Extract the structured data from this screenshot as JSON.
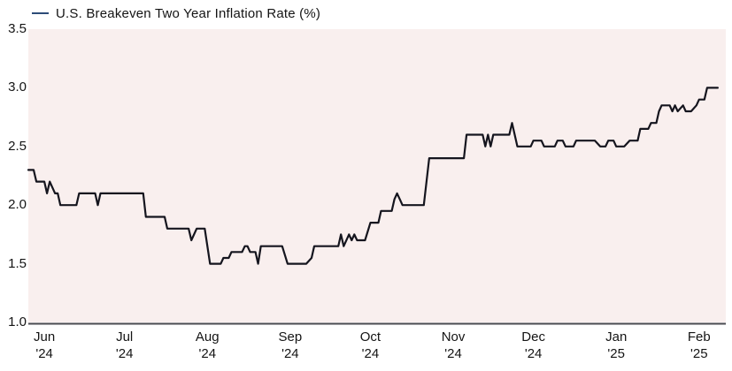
{
  "legend": {
    "label": "U.S. Breakeven Two Year Inflation Rate (%)"
  },
  "colors": {
    "line": "#15151e",
    "legend_dash": "#2c4b77",
    "plot_bg": "#f9efee",
    "axis_line": "#4a4a50",
    "text": "#141414"
  },
  "chart_data": {
    "type": "line",
    "title": "U.S. Breakeven Two Year Inflation Rate (%)",
    "xlabel": "",
    "ylabel": "",
    "grid": false,
    "legend_position": "top-left",
    "plot_background": "#f9efee",
    "x_axis": {
      "range": [
        "2024-05-26",
        "2025-02-11"
      ],
      "ticks": [
        {
          "date": "2024-06-01",
          "label": "Jun\n'24"
        },
        {
          "date": "2024-07-01",
          "label": "Jul\n'24"
        },
        {
          "date": "2024-08-01",
          "label": "Aug\n'24"
        },
        {
          "date": "2024-09-01",
          "label": "Sep\n'24"
        },
        {
          "date": "2024-10-01",
          "label": "Oct\n'24"
        },
        {
          "date": "2024-11-01",
          "label": "Nov\n'24"
        },
        {
          "date": "2024-12-01",
          "label": "Dec\n'24"
        },
        {
          "date": "2025-01-01",
          "label": "Jan\n'25"
        },
        {
          "date": "2025-02-01",
          "label": "Feb\n'25"
        }
      ]
    },
    "y_axis": {
      "range": [
        1.0,
        3.5
      ],
      "ticks": [
        {
          "value": 3.5,
          "label": "3.5"
        },
        {
          "value": 3.0,
          "label": "3.0"
        },
        {
          "value": 2.5,
          "label": "2.5"
        },
        {
          "value": 2.0,
          "label": "2.0"
        },
        {
          "value": 1.5,
          "label": "1.5"
        },
        {
          "value": 1.0,
          "label": "1.0"
        }
      ]
    },
    "series": [
      {
        "name": "U.S. Breakeven Two Year Inflation Rate (%)",
        "color": "#15151e",
        "points": [
          [
            "2024-05-26",
            2.3
          ],
          [
            "2024-05-28",
            2.3
          ],
          [
            "2024-05-29",
            2.2
          ],
          [
            "2024-06-01",
            2.2
          ],
          [
            "2024-06-02",
            2.1
          ],
          [
            "2024-06-03",
            2.2
          ],
          [
            "2024-06-05",
            2.1
          ],
          [
            "2024-06-06",
            2.1
          ],
          [
            "2024-06-07",
            2.0
          ],
          [
            "2024-06-13",
            2.0
          ],
          [
            "2024-06-14",
            2.1
          ],
          [
            "2024-06-20",
            2.1
          ],
          [
            "2024-06-21",
            2.0
          ],
          [
            "2024-06-22",
            2.1
          ],
          [
            "2024-07-08",
            2.1
          ],
          [
            "2024-07-09",
            1.9
          ],
          [
            "2024-07-16",
            1.9
          ],
          [
            "2024-07-17",
            1.8
          ],
          [
            "2024-07-25",
            1.8
          ],
          [
            "2024-07-26",
            1.7
          ],
          [
            "2024-07-28",
            1.8
          ],
          [
            "2024-07-31",
            1.8
          ],
          [
            "2024-08-02",
            1.5
          ],
          [
            "2024-08-06",
            1.5
          ],
          [
            "2024-08-07",
            1.55
          ],
          [
            "2024-08-09",
            1.55
          ],
          [
            "2024-08-10",
            1.6
          ],
          [
            "2024-08-14",
            1.6
          ],
          [
            "2024-08-15",
            1.65
          ],
          [
            "2024-08-16",
            1.65
          ],
          [
            "2024-08-17",
            1.6
          ],
          [
            "2024-08-19",
            1.6
          ],
          [
            "2024-08-20",
            1.5
          ],
          [
            "2024-08-21",
            1.65
          ],
          [
            "2024-08-29",
            1.65
          ],
          [
            "2024-08-31",
            1.5
          ],
          [
            "2024-09-07",
            1.5
          ],
          [
            "2024-09-09",
            1.55
          ],
          [
            "2024-09-10",
            1.65
          ],
          [
            "2024-09-19",
            1.65
          ],
          [
            "2024-09-20",
            1.75
          ],
          [
            "2024-09-21",
            1.65
          ],
          [
            "2024-09-23",
            1.75
          ],
          [
            "2024-09-24",
            1.7
          ],
          [
            "2024-09-25",
            1.75
          ],
          [
            "2024-09-26",
            1.7
          ],
          [
            "2024-09-29",
            1.7
          ],
          [
            "2024-10-01",
            1.85
          ],
          [
            "2024-10-04",
            1.85
          ],
          [
            "2024-10-05",
            1.95
          ],
          [
            "2024-10-09",
            1.95
          ],
          [
            "2024-10-10",
            2.05
          ],
          [
            "2024-10-11",
            2.1
          ],
          [
            "2024-10-12",
            2.05
          ],
          [
            "2024-10-13",
            2.0
          ],
          [
            "2024-10-21",
            2.0
          ],
          [
            "2024-10-23",
            2.4
          ],
          [
            "2024-11-05",
            2.4
          ],
          [
            "2024-11-06",
            2.6
          ],
          [
            "2024-11-12",
            2.6
          ],
          [
            "2024-11-13",
            2.5
          ],
          [
            "2024-11-14",
            2.6
          ],
          [
            "2024-11-15",
            2.5
          ],
          [
            "2024-11-16",
            2.6
          ],
          [
            "2024-11-22",
            2.6
          ],
          [
            "2024-11-23",
            2.7
          ],
          [
            "2024-11-25",
            2.5
          ],
          [
            "2024-11-30",
            2.5
          ],
          [
            "2024-12-01",
            2.55
          ],
          [
            "2024-12-04",
            2.55
          ],
          [
            "2024-12-05",
            2.5
          ],
          [
            "2024-12-09",
            2.5
          ],
          [
            "2024-12-10",
            2.55
          ],
          [
            "2024-12-12",
            2.55
          ],
          [
            "2024-12-13",
            2.5
          ],
          [
            "2024-12-16",
            2.5
          ],
          [
            "2024-12-17",
            2.55
          ],
          [
            "2024-12-24",
            2.55
          ],
          [
            "2024-12-26",
            2.5
          ],
          [
            "2024-12-28",
            2.5
          ],
          [
            "2024-12-29",
            2.55
          ],
          [
            "2024-12-31",
            2.55
          ],
          [
            "2025-01-01",
            2.5
          ],
          [
            "2025-01-04",
            2.5
          ],
          [
            "2025-01-06",
            2.55
          ],
          [
            "2025-01-09",
            2.55
          ],
          [
            "2025-01-10",
            2.65
          ],
          [
            "2025-01-13",
            2.65
          ],
          [
            "2025-01-14",
            2.7
          ],
          [
            "2025-01-16",
            2.7
          ],
          [
            "2025-01-17",
            2.8
          ],
          [
            "2025-01-18",
            2.85
          ],
          [
            "2025-01-21",
            2.85
          ],
          [
            "2025-01-22",
            2.8
          ],
          [
            "2025-01-23",
            2.85
          ],
          [
            "2025-01-24",
            2.8
          ],
          [
            "2025-01-26",
            2.85
          ],
          [
            "2025-01-27",
            2.8
          ],
          [
            "2025-01-29",
            2.8
          ],
          [
            "2025-01-31",
            2.85
          ],
          [
            "2025-02-01",
            2.9
          ],
          [
            "2025-02-03",
            2.9
          ],
          [
            "2025-02-04",
            3.0
          ],
          [
            "2025-02-08",
            3.0
          ]
        ]
      }
    ]
  }
}
